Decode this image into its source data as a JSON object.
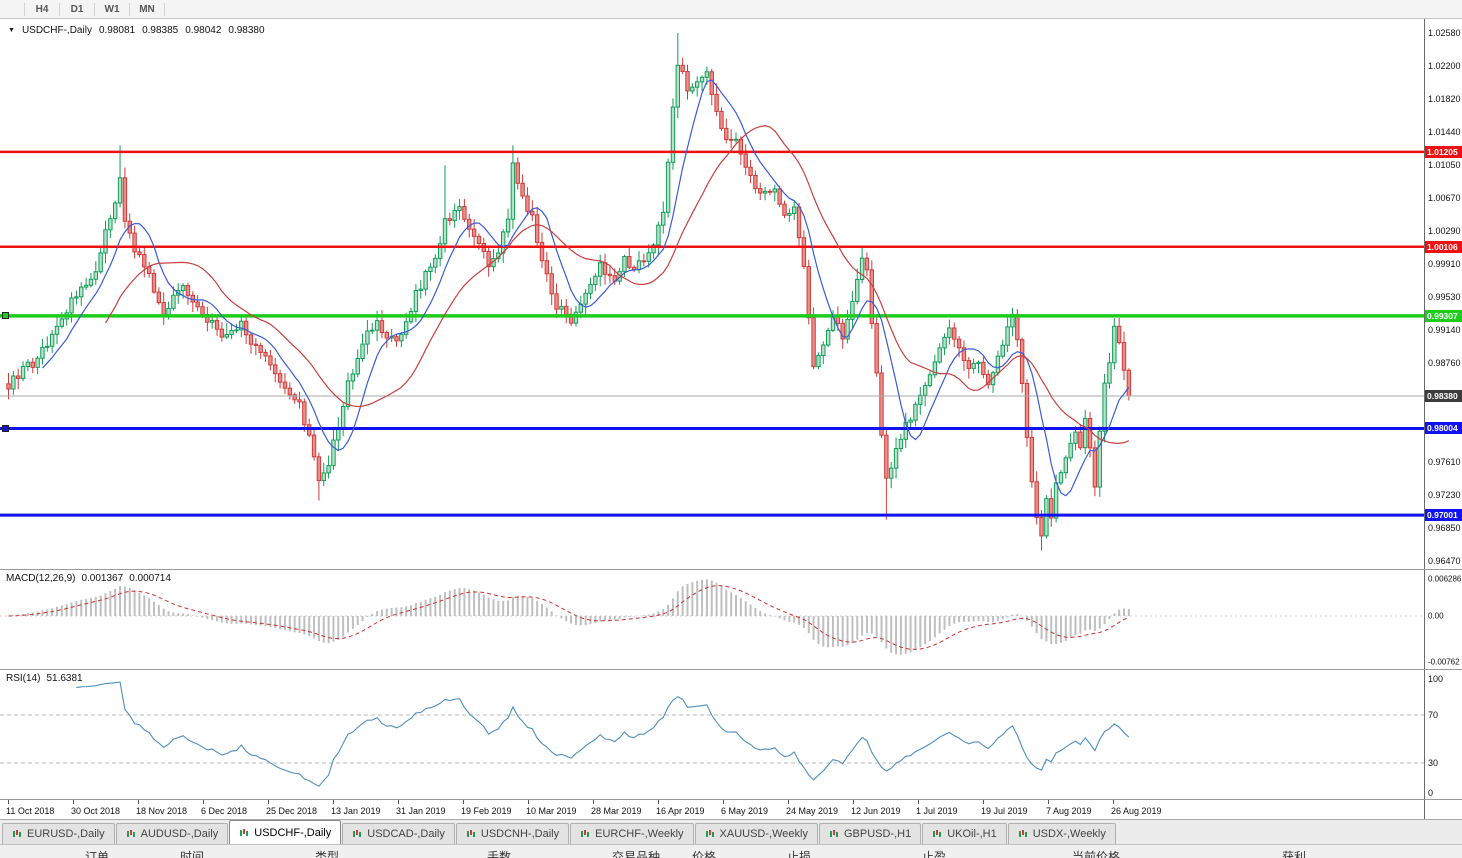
{
  "toolbar": {
    "timeframes": [
      "H4",
      "D1",
      "W1",
      "MN"
    ]
  },
  "chart": {
    "symbol_label": "USDCHF-,Daily",
    "ohlc": {
      "open": "0.98081",
      "high": "0.98385",
      "low": "0.98042",
      "close": "0.98380"
    },
    "price_ticks": [
      "1.02580",
      "1.02200",
      "1.01820",
      "1.01440",
      "1.01050",
      "1.00670",
      "1.00290",
      "0.99910",
      "0.99530",
      "0.99140",
      "0.98760",
      "0.97610",
      "0.97230",
      "0.96850",
      "0.96470"
    ],
    "hlines": [
      {
        "price": 1.01205,
        "label": "1.01205",
        "color": "#ee1111",
        "width": 2.5,
        "handle": false
      },
      {
        "price": 1.00106,
        "label": "1.00106",
        "color": "#ee1111",
        "width": 2.5,
        "handle": false
      },
      {
        "price": 0.99307,
        "label": "0.99307",
        "color": "#1ecc1e",
        "width": 3.5,
        "handle": true
      },
      {
        "price": 0.98004,
        "label": "0.98004",
        "color": "#1212ee",
        "width": 3,
        "handle": true
      },
      {
        "price": 0.97001,
        "label": "0.97001",
        "color": "#1212ee",
        "width": 3,
        "handle": false
      }
    ],
    "current_price": {
      "value": 0.9838,
      "label": "0.98380"
    },
    "dates": [
      "11 Oct 2018",
      "30 Oct 2018",
      "18 Nov 2018",
      "6 Dec 2018",
      "25 Dec 2018",
      "13 Jan 2019",
      "31 Jan 2019",
      "19 Feb 2019",
      "10 Mar 2019",
      "28 Mar 2019",
      "16 Apr 2019",
      "6 May 2019",
      "24 May 2019",
      "12 Jun 2019",
      "1 Jul 2019",
      "19 Jul 2019",
      "7 Aug 2019",
      "26 Aug 2019"
    ],
    "chart_data": {
      "type": "candlestick",
      "symbol": "USDCHF",
      "timeframe": "Daily",
      "y_range": [
        0.9647,
        1.0258
      ],
      "x_range": {
        "start": "11 Oct 2018",
        "end": "26 Aug 2019"
      },
      "candle_count": 232,
      "up_color": "#0f9d58",
      "down_color": "#cf3a3a",
      "close_waypoints": [
        [
          0,
          0.9852
        ],
        [
          3,
          0.987
        ],
        [
          6,
          0.9878
        ],
        [
          9,
          0.9912
        ],
        [
          12,
          0.994
        ],
        [
          14,
          0.9958
        ],
        [
          16,
          0.9972
        ],
        [
          18,
          0.9985
        ],
        [
          20,
          1.0025
        ],
        [
          22,
          1.006
        ],
        [
          23,
          1.0085
        ],
        [
          24,
          1.004
        ],
        [
          26,
          1.001
        ],
        [
          28,
          0.9988
        ],
        [
          30,
          0.996
        ],
        [
          32,
          0.9935
        ],
        [
          34,
          0.995
        ],
        [
          36,
          0.9965
        ],
        [
          38,
          0.9945
        ],
        [
          40,
          0.9935
        ],
        [
          42,
          0.992
        ],
        [
          44,
          0.9905
        ],
        [
          46,
          0.9915
        ],
        [
          48,
          0.992
        ],
        [
          50,
          0.99
        ],
        [
          52,
          0.9888
        ],
        [
          54,
          0.987
        ],
        [
          56,
          0.9858
        ],
        [
          58,
          0.9845
        ],
        [
          60,
          0.9828
        ],
        [
          62,
          0.979
        ],
        [
          64,
          0.9742
        ],
        [
          66,
          0.9762
        ],
        [
          68,
          0.9805
        ],
        [
          70,
          0.9852
        ],
        [
          73,
          0.9902
        ],
        [
          76,
          0.9922
        ],
        [
          78,
          0.991
        ],
        [
          80,
          0.9898
        ],
        [
          82,
          0.9925
        ],
        [
          84,
          0.9955
        ],
        [
          86,
          0.9978
        ],
        [
          88,
          1.0002
        ],
        [
          90,
          1.0038
        ],
        [
          93,
          1.0058
        ],
        [
          95,
          1.0035
        ],
        [
          97,
          1.0012
        ],
        [
          99,
          0.9992
        ],
        [
          101,
          1.0008
        ],
        [
          103,
          1.0045
        ],
        [
          104,
          1.0105
        ],
        [
          106,
          1.0068
        ],
        [
          108,
          1.0042
        ],
        [
          110,
          0.9992
        ],
        [
          113,
          0.9942
        ],
        [
          116,
          0.9928
        ],
        [
          119,
          0.9958
        ],
        [
          122,
          0.9988
        ],
        [
          125,
          0.9975
        ],
        [
          127,
          0.9998
        ],
        [
          129,
          0.9985
        ],
        [
          131,
          0.9992
        ],
        [
          133,
          1.0015
        ],
        [
          135,
          1.0055
        ],
        [
          136,
          1.0105
        ],
        [
          137,
          1.017
        ],
        [
          138,
          1.0225
        ],
        [
          140,
          1.019
        ],
        [
          142,
          1.0198
        ],
        [
          144,
          1.0208
        ],
        [
          146,
          1.0165
        ],
        [
          148,
          1.0132
        ],
        [
          150,
          1.014
        ],
        [
          152,
          1.0098
        ],
        [
          155,
          1.0068
        ],
        [
          158,
          1.0082
        ],
        [
          160,
          1.0042
        ],
        [
          162,
          1.0052
        ],
        [
          164,
          0.9992
        ],
        [
          165,
          0.993
        ],
        [
          166,
          0.9875
        ],
        [
          168,
          0.9902
        ],
        [
          170,
          0.9928
        ],
        [
          172,
          0.9905
        ],
        [
          174,
          0.9948
        ],
        [
          176,
          0.9998
        ],
        [
          177,
          0.9985
        ],
        [
          178,
          0.992
        ],
        [
          179,
          0.9862
        ],
        [
          180,
          0.9795
        ],
        [
          181,
          0.9745
        ],
        [
          183,
          0.9772
        ],
        [
          185,
          0.9802
        ],
        [
          188,
          0.984
        ],
        [
          191,
          0.9878
        ],
        [
          194,
          0.9912
        ],
        [
          196,
          0.9892
        ],
        [
          198,
          0.9872
        ],
        [
          200,
          0.9882
        ],
        [
          202,
          0.9852
        ],
        [
          204,
          0.9882
        ],
        [
          206,
          0.9922
        ],
        [
          207,
          0.993
        ],
        [
          208,
          0.9898
        ],
        [
          209,
          0.9852
        ],
        [
          210,
          0.9792
        ],
        [
          211,
          0.9742
        ],
        [
          212,
          0.9702
        ],
        [
          213,
          0.9682
        ],
        [
          214,
          0.9718
        ],
        [
          215,
          0.97
        ],
        [
          216,
          0.9738
        ],
        [
          218,
          0.9768
        ],
        [
          220,
          0.9798
        ],
        [
          221,
          0.9782
        ],
        [
          222,
          0.9808
        ],
        [
          223,
          0.9782
        ],
        [
          224,
          0.9735
        ],
        [
          225,
          0.9798
        ],
        [
          226,
          0.9848
        ],
        [
          227,
          0.9878
        ],
        [
          228,
          0.9918
        ],
        [
          229,
          0.9902
        ],
        [
          230,
          0.9868
        ],
        [
          231,
          0.9838
        ]
      ],
      "wick_overrides": [
        {
          "i": 23,
          "high": 1.0128
        },
        {
          "i": 90,
          "high": 1.0105
        },
        {
          "i": 104,
          "high": 1.0128
        },
        {
          "i": 138,
          "high": 1.0258
        },
        {
          "i": 176,
          "high": 1.0011
        },
        {
          "i": 206,
          "high": 0.9932
        },
        {
          "i": 64,
          "low": 0.9717
        },
        {
          "i": 181,
          "low": 0.9695
        },
        {
          "i": 213,
          "low": 0.9659
        },
        {
          "i": 224,
          "low": 0.9722
        }
      ],
      "overlays": [
        {
          "name": "ma-fast",
          "color": "#3b5bd6"
        },
        {
          "name": "ma-slow",
          "color": "#c84040"
        }
      ]
    }
  },
  "macd": {
    "name": "MACD(12,26,9)",
    "value1": "0.001367",
    "value2": "0.000714",
    "axis_labels": [
      "0.006286",
      "0.00",
      "-0.00762"
    ],
    "histogram_color": "#bfbfbf",
    "signal_color": "#cc3333"
  },
  "rsi": {
    "name": "RSI(14)",
    "value": "51.6381",
    "axis_labels": [
      {
        "label": "100",
        "v": 100
      },
      {
        "label": "70",
        "v": 70
      },
      {
        "label": "30",
        "v": 30
      },
      {
        "label": "0",
        "v": 0
      }
    ],
    "levels": [
      70,
      30
    ],
    "line_color": "#4f8fbf"
  },
  "tabs": [
    {
      "label": "EURUSD-,Daily",
      "active": false
    },
    {
      "label": "AUDUSD-,Daily",
      "active": false
    },
    {
      "label": "USDCHF-,Daily",
      "active": true
    },
    {
      "label": "USDCAD-,Daily",
      "active": false
    },
    {
      "label": "USDCNH-,Daily",
      "active": false
    },
    {
      "label": "EURCHF-,Weekly",
      "active": false
    },
    {
      "label": "XAUUSD-,Weekly",
      "active": false
    },
    {
      "label": "GBPUSD-,H1",
      "active": false
    },
    {
      "label": "UKOil-,H1",
      "active": false
    },
    {
      "label": "USDX-,Weekly",
      "active": false
    }
  ],
  "status": {
    "items": [
      "订单",
      "时间",
      "类型",
      "手数",
      "交易品种",
      "价格",
      "止损",
      "止盈",
      "当前价格",
      "获利"
    ]
  }
}
